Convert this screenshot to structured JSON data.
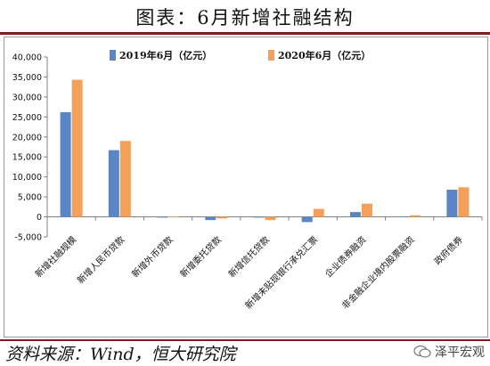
{
  "header": {
    "title": "图表：6月新增社融结构"
  },
  "footer": {
    "source": "资料来源：Wind，恒大研究院",
    "watermark": "泽平宏观"
  },
  "colors": {
    "series1": "#5b86c4",
    "series2": "#f2a05a",
    "accent": "#7f1d1d"
  },
  "chart_data": {
    "type": "bar",
    "title": "",
    "xlabel": "",
    "ylabel": "",
    "ylim": [
      -5000,
      40000
    ],
    "yticks": [
      -5000,
      0,
      5000,
      10000,
      15000,
      20000,
      25000,
      30000,
      35000,
      40000
    ],
    "ytick_labels": [
      "-5,000",
      "0",
      "5,000",
      "10,000",
      "15,000",
      "20,000",
      "25,000",
      "30,000",
      "35,000",
      "40,000"
    ],
    "legend_position": "top",
    "grid": false,
    "categories": [
      "新增社融规模",
      "新增人民币贷款",
      "新增外币贷款",
      "新增委托贷款",
      "新增信托贷款",
      "新增未贴现银行承兑汇票",
      "企业债券融资",
      "非金融企业境内股票融资",
      "政府债券"
    ],
    "series": [
      {
        "name": "2019年6月（亿元）",
        "values": [
          26200,
          16700,
          -100,
          -800,
          -100,
          -1300,
          1200,
          100,
          6800
        ]
      },
      {
        "name": "2020年6月（亿元）",
        "values": [
          34300,
          19000,
          100,
          -400,
          -800,
          2000,
          3300,
          400,
          7400
        ]
      }
    ]
  }
}
